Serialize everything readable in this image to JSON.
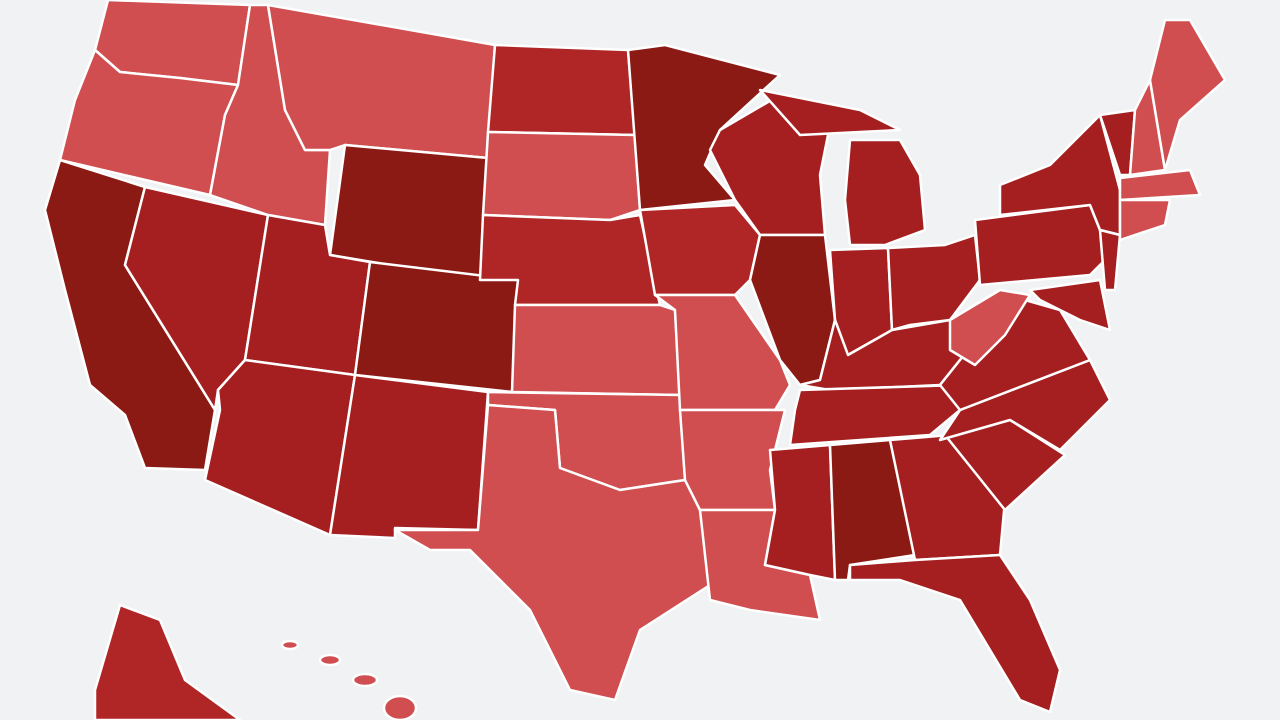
{
  "map": {
    "background": "#f0f2f3",
    "shades": [
      "#d04e50",
      "#b02626",
      "#a51f20",
      "#8c1a14"
    ]
  }
}
